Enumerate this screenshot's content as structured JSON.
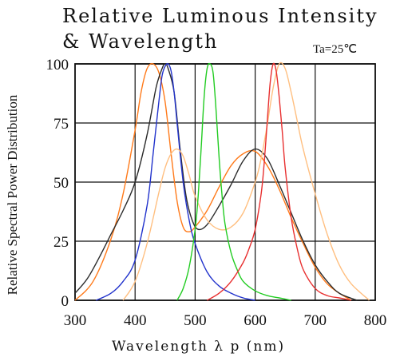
{
  "chart_data": {
    "type": "line",
    "title": "Relative Luminous Intensity",
    "title_line2": "& Wavelength",
    "condition": "Ta=25℃",
    "xlabel": "Wavelength λ p (nm)",
    "ylabel": "Relative Spectral Power Distribution",
    "xlim": [
      300,
      800
    ],
    "ylim": [
      0,
      100
    ],
    "xticks": [
      300,
      400,
      500,
      600,
      700,
      800
    ],
    "yticks": [
      0,
      25,
      50,
      75,
      100
    ],
    "grid": true,
    "legend": "none",
    "series": [
      {
        "color": "#ff7a1a",
        "x": [
          300,
          330,
          360,
          380,
          400,
          410,
          420,
          430,
          440,
          450,
          460,
          470,
          480,
          490,
          500,
          520,
          540,
          560,
          580,
          600,
          620,
          640,
          660,
          680,
          700,
          720,
          740,
          760
        ],
        "y": [
          0,
          8,
          26,
          45,
          72,
          88,
          98,
          100,
          96,
          84,
          62,
          42,
          31,
          29,
          31,
          38,
          48,
          57,
          62,
          63,
          57,
          47,
          35,
          24,
          14,
          7,
          3,
          0
        ]
      },
      {
        "color": "#2b2b2b",
        "x": [
          300,
          320,
          340,
          360,
          380,
          400,
          420,
          435,
          445,
          450,
          455,
          465,
          475,
          485,
          495,
          505,
          520,
          540,
          560,
          580,
          600,
          620,
          640,
          660,
          680,
          700,
          720,
          740,
          770
        ],
        "y": [
          3,
          9,
          18,
          28,
          38,
          50,
          70,
          90,
          98,
          100,
          98,
          88,
          64,
          44,
          34,
          30,
          32,
          40,
          49,
          59,
          64,
          60,
          49,
          37,
          25,
          15,
          8,
          3,
          0
        ]
      },
      {
        "color": "#2233cc",
        "x": [
          335,
          360,
          380,
          400,
          420,
          430,
          440,
          445,
          450,
          455,
          460,
          465,
          470,
          480,
          490,
          500,
          520,
          540,
          560,
          580,
          600
        ],
        "y": [
          0,
          3,
          8,
          17,
          40,
          62,
          85,
          95,
          99,
          100,
          97,
          88,
          75,
          50,
          34,
          24,
          12,
          6,
          3,
          1,
          0
        ]
      },
      {
        "color": "#ffbf80",
        "x": [
          380,
          400,
          420,
          440,
          450,
          460,
          470,
          480,
          490,
          500,
          520,
          540,
          560,
          580,
          600,
          610,
          620,
          630,
          640,
          650,
          660,
          670,
          680,
          700,
          720,
          740,
          760,
          790
        ],
        "y": [
          0,
          8,
          24,
          46,
          56,
          62,
          64,
          61,
          53,
          44,
          34,
          30,
          31,
          37,
          50,
          60,
          74,
          90,
          100,
          98,
          88,
          76,
          64,
          45,
          28,
          15,
          7,
          0
        ]
      },
      {
        "color": "#22cc22",
        "x": [
          470,
          480,
          490,
          500,
          505,
          510,
          515,
          520,
          525,
          530,
          535,
          540,
          545,
          550,
          560,
          570,
          580,
          600,
          620,
          640,
          660
        ],
        "y": [
          0,
          5,
          14,
          30,
          44,
          64,
          86,
          98,
          100,
          96,
          80,
          60,
          44,
          32,
          20,
          13,
          8,
          4,
          2,
          1,
          0
        ]
      },
      {
        "color": "#e83030",
        "x": [
          520,
          540,
          560,
          580,
          590,
          600,
          610,
          615,
          620,
          625,
          630,
          635,
          640,
          645,
          650,
          660,
          670,
          680,
          700,
          720,
          740,
          760
        ],
        "y": [
          0,
          3,
          8,
          16,
          22,
          30,
          45,
          58,
          75,
          92,
          100,
          97,
          86,
          72,
          56,
          35,
          22,
          13,
          5,
          2,
          1,
          0
        ]
      }
    ]
  }
}
